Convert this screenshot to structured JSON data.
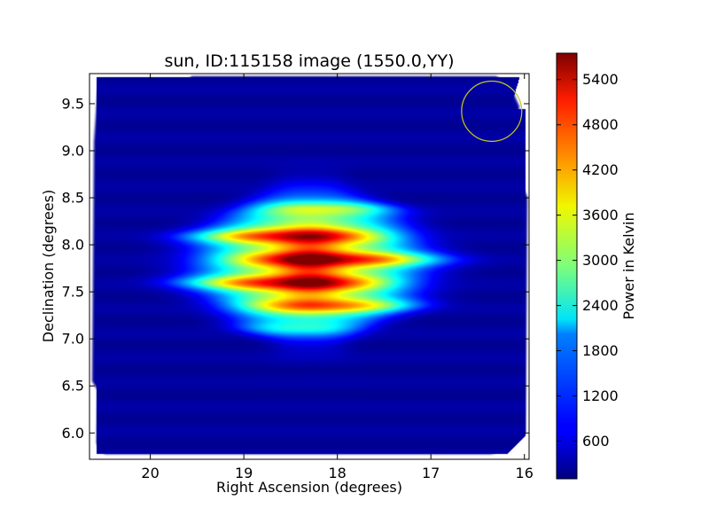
{
  "chart_data": {
    "type": "heatmap",
    "title": "sun, ID:115158 image (1550.0,YY)",
    "xlabel": "Right Ascension (degrees)",
    "ylabel": "Declination (degrees)",
    "colorbar_label": "Power in Kelvin",
    "colormap": "jet",
    "xlim": [
      20.65,
      15.95
    ],
    "ylim": [
      5.72,
      9.82
    ],
    "x_inverted": true,
    "x_ticks": [
      20,
      19,
      18,
      17,
      16
    ],
    "y_ticks": [
      6.0,
      6.5,
      7.0,
      7.5,
      8.0,
      8.5,
      9.0,
      9.5
    ],
    "colorbar_ticks": [
      600,
      1200,
      1800,
      2400,
      3000,
      3600,
      4200,
      4800,
      5400
    ],
    "colorbar_range": [
      100,
      5750
    ],
    "background_level_K": 200,
    "source": {
      "center_ra": 18.3,
      "center_dec": 7.8,
      "peak_K": 5600,
      "extent_ra": [
        19.5,
        17.1
      ],
      "extent_dec": [
        7.05,
        8.6
      ],
      "fringe_bands_dec": [
        8.4,
        8.1,
        7.85,
        7.6,
        7.35,
        7.1
      ]
    },
    "beam_circle": {
      "center_ra": 16.35,
      "center_dec": 9.42,
      "radius_deg": 0.32,
      "color": "#c8c81e"
    },
    "grid": false,
    "colorbar_position": "right"
  }
}
